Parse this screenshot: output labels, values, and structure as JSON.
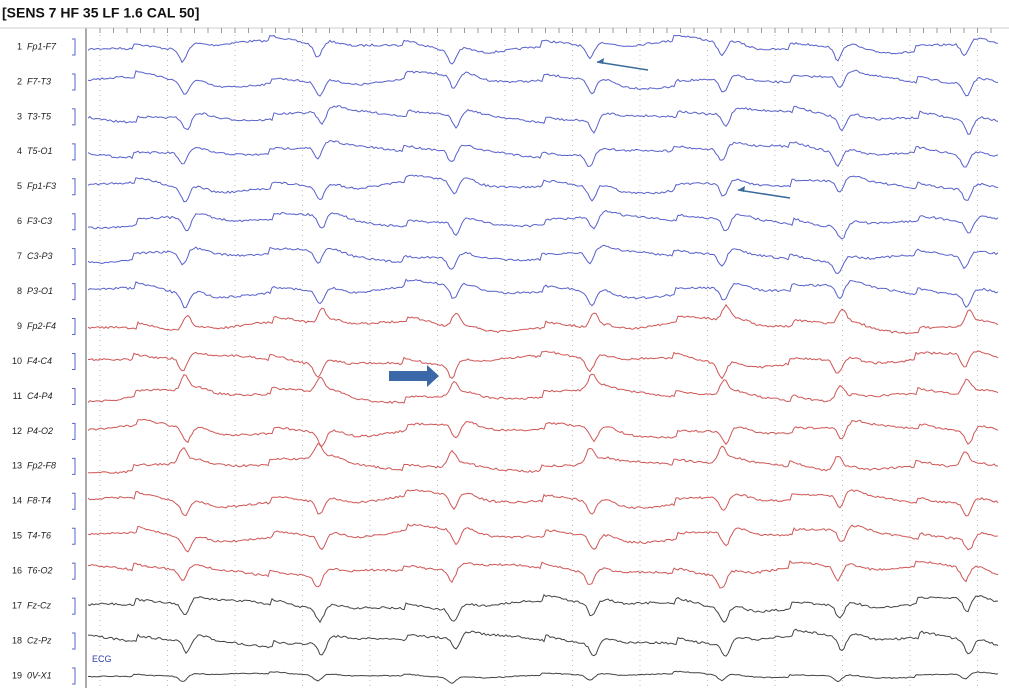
{
  "header": {
    "title": "[SENS 7  HF 35  LF 1.6  CAL 50]"
  },
  "channels": [
    {
      "number": "1",
      "label": "Fp1-F7"
    },
    {
      "number": "2",
      "label": "F7-T3"
    },
    {
      "number": "3",
      "label": "T3-T5"
    },
    {
      "number": "4",
      "label": "T5-O1"
    },
    {
      "number": "5",
      "label": "Fp1-F3"
    },
    {
      "number": "6",
      "label": "F3-C3"
    },
    {
      "number": "7",
      "label": "C3-P3"
    },
    {
      "number": "8",
      "label": "P3-O1"
    },
    {
      "number": "9",
      "label": "Fp2-F4"
    },
    {
      "number": "10",
      "label": "F4-C4"
    },
    {
      "number": "11",
      "label": "C4-P4"
    },
    {
      "number": "12",
      "label": "P4-O2"
    },
    {
      "number": "13",
      "label": "Fp2-F8"
    },
    {
      "number": "14",
      "label": "F8-T4"
    },
    {
      "number": "15",
      "label": "T4-T6"
    },
    {
      "number": "16",
      "label": "T6-O2"
    },
    {
      "number": "17",
      "label": "Fz-Cz"
    },
    {
      "number": "18",
      "label": "Cz-Pz"
    },
    {
      "number": "19",
      "label": "0V-X1"
    }
  ],
  "ecg_label": "ECG"
}
